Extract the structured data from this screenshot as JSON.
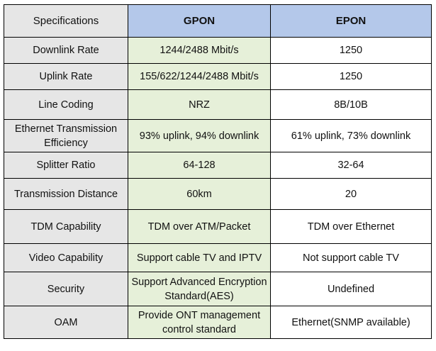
{
  "header": {
    "col1": "Specifications",
    "col2": "GPON",
    "col3": "EPON"
  },
  "rows": [
    {
      "spec": "Downlink Rate",
      "gpon": "1244/2488 Mbit/s",
      "epon": "1250"
    },
    {
      "spec": "Uplink Rate",
      "gpon": "155/622/1244/2488 Mbit/s",
      "epon": "1250"
    },
    {
      "spec": "Line Coding",
      "gpon": "NRZ",
      "epon": "8B/10B"
    },
    {
      "spec": "Ethernet Transmission Efficiency",
      "gpon": "93% uplink, 94% downlink",
      "epon": "61% uplink, 73% downlink"
    },
    {
      "spec": "Splitter Ratio",
      "gpon": "64-128",
      "epon": "32-64"
    },
    {
      "spec": "Transmission Distance",
      "gpon": "60km",
      "epon": "20"
    },
    {
      "spec": "TDM Capability",
      "gpon": "TDM over ATM/Packet",
      "epon": "TDM over Ethernet"
    },
    {
      "spec": "Video Capability",
      "gpon": "Support cable TV and IPTV",
      "epon": "Not support cable TV"
    },
    {
      "spec": "Security",
      "gpon": "Support Advanced Encryption Standard(AES)",
      "epon": "Undefined"
    },
    {
      "spec": "OAM",
      "gpon": "Provide ONT management control standard",
      "epon": "Ethernet(SNMP available)"
    }
  ],
  "colors": {
    "label_bg": "#e6e6e6",
    "gpon_bg": "#e6f0d9",
    "header_accent": "#b4c8ea",
    "border": "#000000"
  }
}
